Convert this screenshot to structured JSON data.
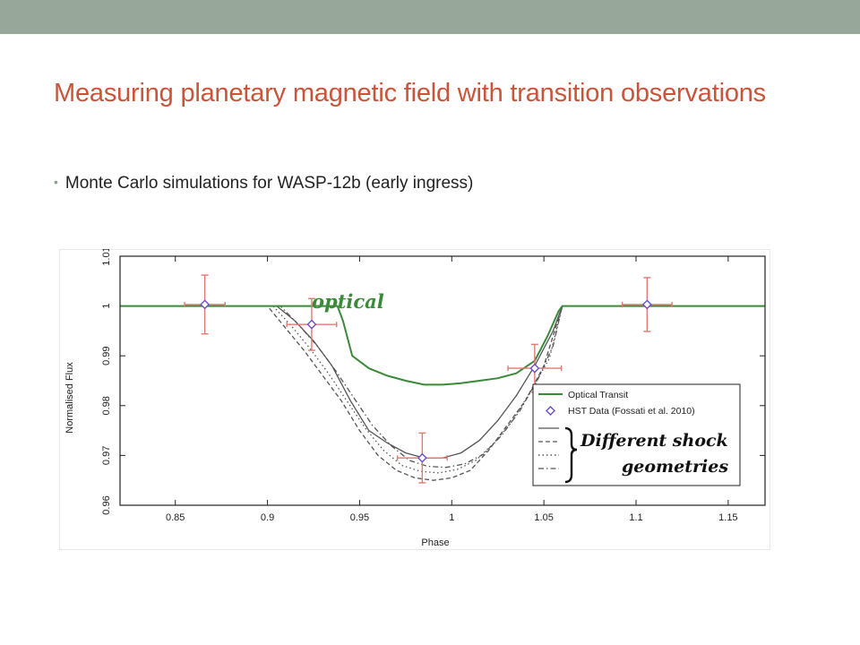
{
  "slide": {
    "title": "Measuring planetary magnetic field with transition observations",
    "bullet": "Monte Carlo simulations for WASP-12b (early ingress)"
  },
  "colors": {
    "top_bar": "#97a79a",
    "title": "#c9543a",
    "optical": "#3a8a3a",
    "hst_marker": "#6b4fc8",
    "error_bar": "#e07a70",
    "shock": "#555555"
  },
  "chart_data": {
    "type": "line",
    "title": "",
    "xlabel": "Phase",
    "ylabel": "Normalised Flux",
    "xlim": [
      0.82,
      1.17
    ],
    "ylim": [
      0.96,
      1.01
    ],
    "x_ticks": [
      0.85,
      0.9,
      0.95,
      1,
      1.05,
      1.1,
      1.15
    ],
    "x_tick_labels": [
      "0.85",
      "0.9",
      "0.95",
      "1",
      "1.05",
      "1.1",
      "1.15"
    ],
    "y_ticks": [
      0.96,
      0.97,
      0.98,
      0.99,
      1,
      1.01
    ],
    "y_tick_labels": [
      "0.96",
      "0.97",
      "0.98",
      "0.99",
      "1",
      "1.01"
    ],
    "annotations": [
      "optical",
      "Different shock",
      "geometries"
    ],
    "legend": {
      "placement": "bottom-right",
      "entries": [
        {
          "label": "Optical Transit",
          "style": "solid-green"
        },
        {
          "label": "HST Data (Fossati et al. 2010)",
          "style": "diamond"
        },
        {
          "label": "",
          "style": "solid"
        },
        {
          "label": "",
          "style": "dashed"
        },
        {
          "label": "",
          "style": "dotted"
        },
        {
          "label": "",
          "style": "dashdot"
        }
      ]
    },
    "series": [
      {
        "name": "Optical Transit",
        "style": "solid",
        "color": "#3a8a3a",
        "x": [
          0.82,
          0.938,
          0.941,
          0.946,
          0.955,
          0.965,
          0.975,
          0.985,
          0.995,
          1.005,
          1.015,
          1.025,
          1.035,
          1.045,
          1.052,
          1.058,
          1.06,
          1.17
        ],
        "y": [
          1.0,
          1.0,
          0.997,
          0.99,
          0.9875,
          0.986,
          0.985,
          0.9842,
          0.9842,
          0.9845,
          0.985,
          0.9855,
          0.9865,
          0.989,
          0.994,
          0.999,
          1.0,
          1.0
        ]
      },
      {
        "name": "",
        "style": "solid",
        "color": "#555555",
        "x": [
          0.82,
          0.905,
          0.915,
          0.925,
          0.935,
          0.945,
          0.955,
          0.965,
          0.975,
          0.985,
          0.995,
          1.005,
          1.015,
          1.025,
          1.035,
          1.045,
          1.055,
          1.06,
          1.17
        ],
        "y": [
          1.0,
          1.0,
          0.997,
          0.993,
          0.988,
          0.981,
          0.975,
          0.9725,
          0.9705,
          0.9695,
          0.9695,
          0.9705,
          0.973,
          0.977,
          0.982,
          0.988,
          0.995,
          1.0,
          1.0
        ]
      },
      {
        "name": "",
        "style": "dashed",
        "color": "#555555",
        "x": [
          0.82,
          0.9,
          0.91,
          0.92,
          0.93,
          0.94,
          0.95,
          0.96,
          0.97,
          0.98,
          0.99,
          1.0,
          1.01,
          1.02,
          1.03,
          1.04,
          1.05,
          1.06,
          1.17
        ],
        "y": [
          1.0,
          1.0,
          0.9955,
          0.991,
          0.986,
          0.981,
          0.975,
          0.97,
          0.967,
          0.9655,
          0.965,
          0.9655,
          0.967,
          0.971,
          0.976,
          0.981,
          0.988,
          1.0,
          1.0
        ]
      },
      {
        "name": "",
        "style": "dotted",
        "color": "#555555",
        "x": [
          0.82,
          0.903,
          0.913,
          0.923,
          0.933,
          0.943,
          0.953,
          0.963,
          0.973,
          0.983,
          0.993,
          1.003,
          1.013,
          1.023,
          1.033,
          1.043,
          1.053,
          1.06,
          1.17
        ],
        "y": [
          1.0,
          1.0,
          0.996,
          0.9915,
          0.9865,
          0.981,
          0.9755,
          0.971,
          0.968,
          0.9668,
          0.9665,
          0.9672,
          0.969,
          0.9725,
          0.977,
          0.983,
          0.9895,
          1.0,
          1.0
        ]
      },
      {
        "name": "",
        "style": "dashdot",
        "color": "#555555",
        "x": [
          0.82,
          0.907,
          0.917,
          0.927,
          0.937,
          0.947,
          0.957,
          0.967,
          0.977,
          0.987,
          0.997,
          1.007,
          1.017,
          1.027,
          1.037,
          1.047,
          1.055,
          1.06,
          1.17
        ],
        "y": [
          1.0,
          1.0,
          0.9962,
          0.992,
          0.987,
          0.9815,
          0.976,
          0.972,
          0.969,
          0.9678,
          0.9676,
          0.9683,
          0.9702,
          0.974,
          0.979,
          0.9855,
          0.992,
          1.0,
          1.0
        ]
      }
    ],
    "hst_data": {
      "name": "HST Data (Fossati et al. 2010)",
      "points": [
        {
          "x": 0.866,
          "y": 1.0003,
          "xerr": 0.011,
          "yerr": 0.0059
        },
        {
          "x": 0.924,
          "y": 0.9963,
          "xerr": 0.0135,
          "yerr": 0.0052
        },
        {
          "x": 0.984,
          "y": 0.9695,
          "xerr": 0.0135,
          "yerr": 0.005
        },
        {
          "x": 1.045,
          "y": 0.9875,
          "xerr": 0.0145,
          "yerr": 0.0048
        },
        {
          "x": 1.106,
          "y": 1.0003,
          "xerr": 0.0135,
          "yerr": 0.0054
        }
      ]
    }
  }
}
